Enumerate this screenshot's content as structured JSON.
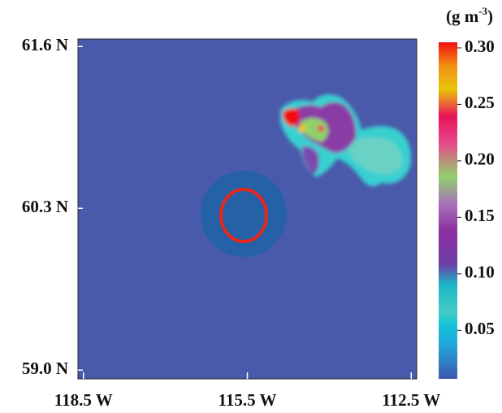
{
  "map": {
    "xlim": [
      -118.6,
      -112.4
    ],
    "ylim": [
      58.93,
      61.66
    ],
    "xticks": [
      {
        "value": -118.5,
        "label": "118.5 W"
      },
      {
        "value": -115.5,
        "label": "115.5 W"
      },
      {
        "value": -112.5,
        "label": "112.5 W"
      }
    ],
    "yticks": [
      {
        "value": 61.6,
        "label": "61.6 N"
      },
      {
        "value": 60.3,
        "label": "60.3 N"
      },
      {
        "value": 59.0,
        "label": "59.0 N"
      }
    ]
  },
  "colorbar": {
    "title": [
      "(g m",
      "-3",
      ")"
    ],
    "clim": [
      0.007,
      0.305
    ],
    "ticks": [
      {
        "value": 0.3,
        "label": "0.30"
      },
      {
        "value": 0.25,
        "label": "0.25"
      },
      {
        "value": 0.2,
        "label": "0.20"
      },
      {
        "value": 0.15,
        "label": "0.15"
      },
      {
        "value": 0.1,
        "label": "0.10"
      },
      {
        "value": 0.05,
        "label": "0.05"
      }
    ]
  }
}
